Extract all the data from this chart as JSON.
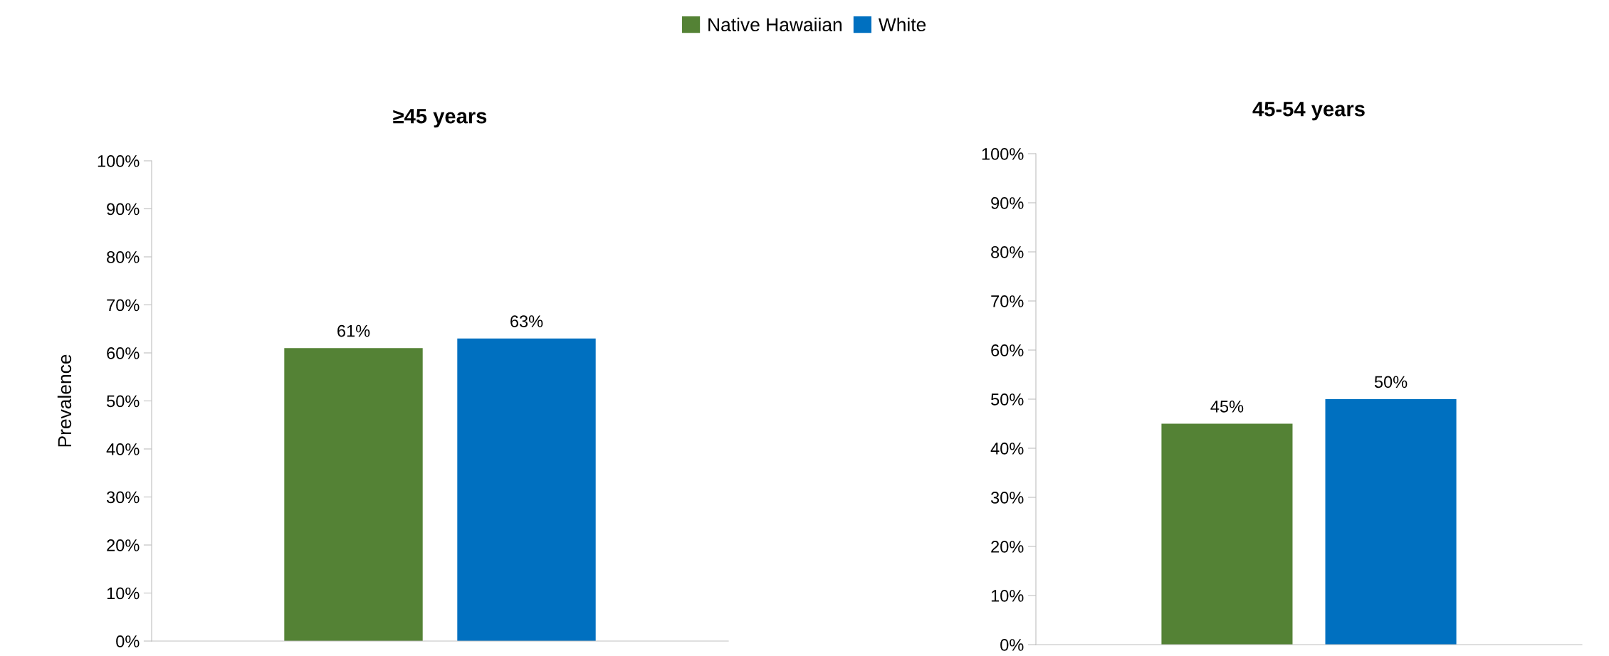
{
  "chart_data": [
    {
      "type": "bar",
      "title": "≥45 years",
      "ylabel": "Prevalence",
      "categories": [
        null
      ],
      "series": [
        {
          "name": "Native Hawaiian",
          "color": "#548235",
          "values": [
            61
          ]
        },
        {
          "name": "White",
          "color": "#0070c0",
          "values": [
            63
          ]
        }
      ],
      "ylim": [
        0,
        100
      ],
      "yticks": [
        {
          "value": 0,
          "label": "0%"
        },
        {
          "value": 10,
          "label": "10%"
        },
        {
          "value": 20,
          "label": "20%"
        },
        {
          "value": 30,
          "label": "30%"
        },
        {
          "value": 40,
          "label": "40%"
        },
        {
          "value": 50,
          "label": "50%"
        },
        {
          "value": 60,
          "label": "60%"
        },
        {
          "value": 70,
          "label": "70%"
        },
        {
          "value": 80,
          "label": "80%"
        },
        {
          "value": 90,
          "label": "90%"
        },
        {
          "value": 100,
          "label": "100%"
        }
      ],
      "value_labels": [
        "61%",
        "63%"
      ],
      "legend": "top",
      "grid": false
    },
    {
      "type": "bar",
      "title": "45-54 years",
      "categories": [
        null
      ],
      "series": [
        {
          "color": "#548235",
          "values": [
            45
          ]
        },
        {
          "color": "#0070c0",
          "values": [
            50
          ]
        }
      ],
      "ylim": [
        0,
        100
      ],
      "yticks": [
        {
          "value": 0,
          "label": "0%"
        },
        {
          "value": 10,
          "label": "10%"
        },
        {
          "value": 20,
          "label": "20%"
        },
        {
          "value": 30,
          "label": "30%"
        },
        {
          "value": 40,
          "label": "40%"
        },
        {
          "value": 50,
          "label": "50%"
        },
        {
          "value": 60,
          "label": "60%"
        },
        {
          "value": 70,
          "label": "70%"
        },
        {
          "value": 80,
          "label": "80%"
        },
        {
          "value": 90,
          "label": "90%"
        },
        {
          "value": 100,
          "label": "100%"
        }
      ],
      "value_labels": [
        "45%",
        "50%"
      ],
      "grid": false
    }
  ]
}
